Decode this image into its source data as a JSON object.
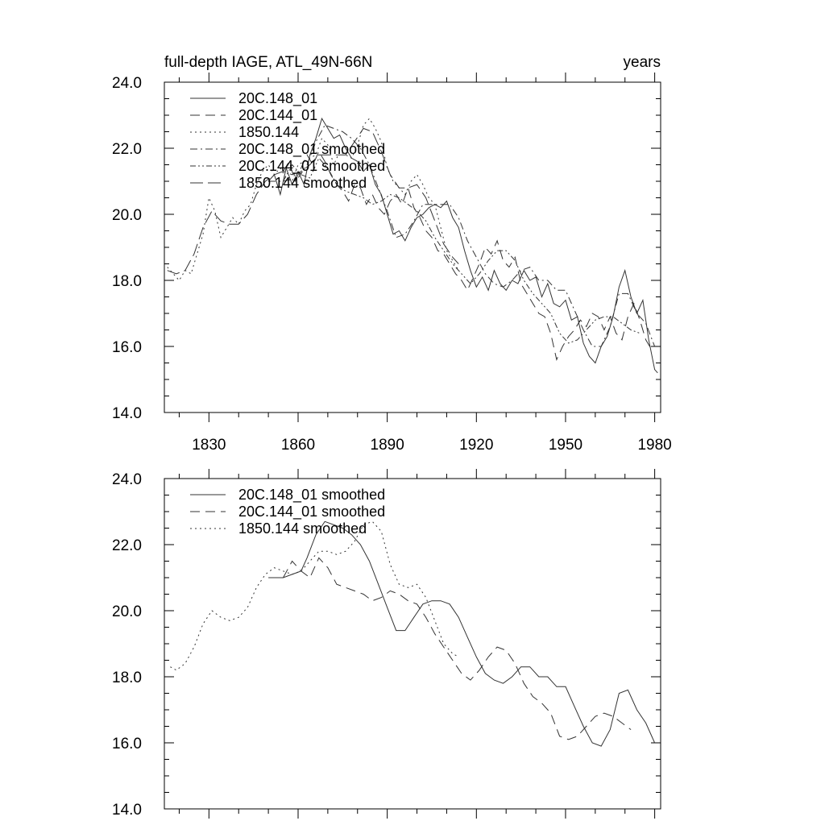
{
  "chart_data": [
    {
      "type": "line",
      "title": "full-depth IAGE, ATL_49N-66N",
      "units": "years",
      "xlim": [
        1815,
        1982
      ],
      "ylim": [
        14.0,
        24.0
      ],
      "xticks": [
        "1830",
        "1860",
        "1890",
        "1920",
        "1950",
        "1980"
      ],
      "yticks": [
        "14.0",
        "16.0",
        "18.0",
        "20.0",
        "22.0",
        "24.0"
      ],
      "legend_position": "top-left",
      "series": [
        {
          "name": "20C.148_01",
          "style": "solid",
          "x": [
            1850,
            1852,
            1854,
            1856,
            1858,
            1860,
            1862,
            1864,
            1866,
            1868,
            1870,
            1872,
            1874,
            1876,
            1878,
            1880,
            1882,
            1884,
            1886,
            1888,
            1890,
            1892,
            1894,
            1896,
            1898,
            1900,
            1902,
            1904,
            1906,
            1908,
            1910,
            1912,
            1914,
            1916,
            1918,
            1920,
            1922,
            1924,
            1926,
            1928,
            1930,
            1932,
            1934,
            1936,
            1938,
            1940,
            1942,
            1944,
            1946,
            1948,
            1950,
            1952,
            1954,
            1956,
            1958,
            1960,
            1962,
            1964,
            1966,
            1968,
            1970,
            1972,
            1974,
            1976,
            1978,
            1980,
            1981
          ],
          "y": [
            21.0,
            21.2,
            20.6,
            21.4,
            20.9,
            21.3,
            20.9,
            21.8,
            22.3,
            22.9,
            22.6,
            22.3,
            22.4,
            22.0,
            21.7,
            21.6,
            21.3,
            21.5,
            20.9,
            20.6,
            20.0,
            19.4,
            19.5,
            19.2,
            19.6,
            19.9,
            20.0,
            20.2,
            20.3,
            20.2,
            20.4,
            19.9,
            19.6,
            18.9,
            18.3,
            17.8,
            18.1,
            17.7,
            18.3,
            17.9,
            17.7,
            18.0,
            17.9,
            18.3,
            18.0,
            18.1,
            17.5,
            17.9,
            17.3,
            17.2,
            17.4,
            16.8,
            16.9,
            16.1,
            15.7,
            15.5,
            16.0,
            16.3,
            16.9,
            17.8,
            18.3,
            17.5,
            17.0,
            17.4,
            16.2,
            15.3,
            15.2
          ]
        },
        {
          "name": "20C.144_01",
          "style": "dashed",
          "x": [
            1855,
            1857,
            1859,
            1861,
            1863,
            1865,
            1867,
            1869,
            1871,
            1873,
            1875,
            1877,
            1879,
            1881,
            1883,
            1885,
            1887,
            1889,
            1891,
            1893,
            1895,
            1897,
            1899,
            1901,
            1903,
            1905,
            1907,
            1909,
            1911,
            1913,
            1915,
            1917,
            1919,
            1921,
            1923,
            1925,
            1927,
            1929,
            1931,
            1933,
            1935,
            1937,
            1939,
            1941,
            1943,
            1945,
            1947,
            1949,
            1951,
            1953,
            1955,
            1957,
            1959,
            1961,
            1963,
            1965,
            1967,
            1969,
            1971,
            1973,
            1975,
            1977,
            1979
          ],
          "y": [
            21.3,
            21.6,
            21.0,
            21.4,
            21.8,
            21.5,
            21.9,
            21.6,
            21.2,
            20.9,
            20.7,
            20.4,
            20.9,
            20.8,
            20.3,
            20.6,
            20.2,
            20.0,
            20.4,
            20.6,
            20.3,
            20.8,
            20.2,
            19.9,
            19.5,
            19.3,
            18.9,
            18.8,
            18.5,
            18.2,
            18.0,
            17.7,
            18.1,
            18.5,
            19.0,
            18.8,
            19.2,
            18.6,
            18.4,
            18.7,
            17.9,
            17.6,
            17.3,
            17.0,
            16.9,
            16.4,
            15.6,
            16.0,
            16.3,
            16.5,
            16.8,
            16.6,
            17.0,
            16.9,
            16.5,
            16.9,
            16.4,
            16.2,
            16.9,
            17.3,
            16.8,
            16.2,
            15.9
          ]
        },
        {
          "name": "1850.144",
          "style": "dotted",
          "x": [
            1816,
            1818,
            1820,
            1822,
            1824,
            1826,
            1828,
            1830,
            1832,
            1834,
            1836,
            1838,
            1840,
            1842,
            1844,
            1846,
            1848,
            1850,
            1852,
            1854,
            1856,
            1858,
            1860,
            1862,
            1864,
            1866,
            1868,
            1870,
            1872,
            1874,
            1876,
            1878,
            1880,
            1882,
            1884,
            1886,
            1888,
            1890,
            1892,
            1894,
            1896,
            1898,
            1900,
            1902,
            1904,
            1906,
            1908,
            1910,
            1912,
            1914
          ],
          "y": [
            18.4,
            18.2,
            18.0,
            18.3,
            18.2,
            18.8,
            19.4,
            20.5,
            20.1,
            19.3,
            19.6,
            19.9,
            19.7,
            20.1,
            20.3,
            20.9,
            21.3,
            21.5,
            21.2,
            21.4,
            21.1,
            21.0,
            21.5,
            21.6,
            21.7,
            21.8,
            22.3,
            22.1,
            21.5,
            21.9,
            21.8,
            21.7,
            22.1,
            22.7,
            22.9,
            22.6,
            22.2,
            21.4,
            21.0,
            20.8,
            20.6,
            21.0,
            21.2,
            20.9,
            20.5,
            20.3,
            19.6,
            18.9,
            18.6,
            18.3
          ]
        },
        {
          "name": "20C.148_01 smoothed",
          "style": "dashdot",
          "x": [
            1850,
            1855,
            1860,
            1863,
            1866,
            1869,
            1872,
            1875,
            1878,
            1881,
            1884,
            1887,
            1890,
            1893,
            1896,
            1899,
            1902,
            1905,
            1908,
            1911,
            1914,
            1917,
            1920,
            1923,
            1926,
            1929,
            1932,
            1935,
            1938,
            1941,
            1944,
            1947,
            1950,
            1953,
            1956,
            1959,
            1962,
            1965,
            1968,
            1971,
            1974,
            1977,
            1980
          ],
          "y": [
            21.0,
            21.0,
            21.1,
            21.5,
            22.2,
            22.7,
            22.6,
            22.5,
            22.3,
            22.0,
            21.5,
            20.8,
            20.1,
            19.3,
            19.4,
            19.8,
            20.3,
            20.3,
            20.3,
            20.3,
            19.9,
            19.2,
            18.7,
            18.2,
            17.9,
            17.8,
            18.0,
            18.3,
            18.4,
            18.0,
            18.0,
            17.7,
            17.7,
            17.1,
            16.5,
            16.0,
            16.0,
            16.6,
            17.6,
            17.6,
            17.0,
            16.7,
            16.0
          ]
        },
        {
          "name": "20C.144_01 smoothed",
          "style": "dashdotdot",
          "x": [
            1855,
            1858,
            1861,
            1864,
            1867,
            1870,
            1873,
            1876,
            1879,
            1882,
            1885,
            1888,
            1891,
            1894,
            1897,
            1900,
            1903,
            1906,
            1909,
            1912,
            1915,
            1918,
            1921,
            1924,
            1927,
            1930,
            1933,
            1936,
            1939,
            1942,
            1945,
            1948,
            1951,
            1954,
            1957,
            1960,
            1963,
            1966,
            1969,
            1972,
            1975
          ],
          "y": [
            21.0,
            21.5,
            21.2,
            21.1,
            21.7,
            21.4,
            20.9,
            20.7,
            20.6,
            20.5,
            20.3,
            20.4,
            20.6,
            20.5,
            20.3,
            20.1,
            19.8,
            19.3,
            18.9,
            18.5,
            18.2,
            17.9,
            18.2,
            18.6,
            18.9,
            18.9,
            18.6,
            18.0,
            17.6,
            17.3,
            17.0,
            16.4,
            16.1,
            16.2,
            16.5,
            16.8,
            16.9,
            16.9,
            16.7,
            16.5,
            16.4
          ]
        },
        {
          "name": "1850.144 smoothed",
          "style": "longdash",
          "x": [
            1816,
            1819,
            1822,
            1825,
            1828,
            1831,
            1834,
            1837,
            1840,
            1843,
            1846,
            1849,
            1852,
            1855,
            1858,
            1861,
            1864,
            1867,
            1870,
            1873,
            1876,
            1879,
            1882,
            1885,
            1888,
            1891,
            1894,
            1897,
            1900,
            1903,
            1906,
            1909,
            1912,
            1914
          ],
          "y": [
            18.3,
            18.2,
            18.3,
            18.8,
            19.6,
            20.1,
            19.8,
            19.7,
            19.7,
            20.0,
            20.6,
            21.0,
            21.2,
            21.3,
            21.2,
            21.3,
            21.5,
            21.8,
            21.8,
            21.8,
            21.8,
            22.2,
            22.6,
            22.5,
            21.9,
            21.2,
            20.8,
            20.8,
            20.9,
            20.5,
            19.8,
            19.1,
            18.7,
            18.5
          ]
        }
      ]
    },
    {
      "type": "line",
      "title": "",
      "xlim": [
        1815,
        1982
      ],
      "ylim": [
        14.0,
        24.0
      ],
      "yticks": [
        "14.0",
        "16.0",
        "18.0",
        "20.0",
        "22.0",
        "24.0"
      ],
      "legend_position": "top-left",
      "series": [
        {
          "name": "20C.148_01 smoothed",
          "style": "solid",
          "x": [
            1850,
            1855,
            1858,
            1861,
            1863,
            1866,
            1869,
            1872,
            1875,
            1878,
            1881,
            1884,
            1887,
            1890,
            1893,
            1896,
            1899,
            1902,
            1905,
            1908,
            1911,
            1914,
            1917,
            1920,
            1923,
            1926,
            1929,
            1932,
            1935,
            1938,
            1941,
            1944,
            1947,
            1950,
            1953,
            1956,
            1959,
            1962,
            1965,
            1968,
            1971,
            1974,
            1977,
            1980
          ],
          "y": [
            21.0,
            21.0,
            21.1,
            21.2,
            21.6,
            22.3,
            22.7,
            22.6,
            22.5,
            22.3,
            22.0,
            21.5,
            20.8,
            20.1,
            19.4,
            19.4,
            19.8,
            20.2,
            20.3,
            20.3,
            20.2,
            19.8,
            19.2,
            18.6,
            18.1,
            17.9,
            17.8,
            18.0,
            18.3,
            18.3,
            18.0,
            18.0,
            17.7,
            17.7,
            17.1,
            16.5,
            16.0,
            15.9,
            16.4,
            17.5,
            17.6,
            17.0,
            16.6,
            16.0
          ]
        },
        {
          "name": "20C.144_01 smoothed",
          "style": "dashed",
          "x": [
            1855,
            1858,
            1861,
            1864,
            1867,
            1870,
            1873,
            1876,
            1879,
            1882,
            1885,
            1888,
            1891,
            1894,
            1897,
            1900,
            1903,
            1906,
            1909,
            1912,
            1915,
            1918,
            1921,
            1924,
            1927,
            1930,
            1933,
            1936,
            1939,
            1942,
            1945,
            1948,
            1951,
            1954,
            1957,
            1960,
            1963,
            1966,
            1969,
            1972
          ],
          "y": [
            21.0,
            21.5,
            21.2,
            21.0,
            21.6,
            21.3,
            20.8,
            20.7,
            20.6,
            20.5,
            20.3,
            20.4,
            20.6,
            20.5,
            20.3,
            20.2,
            19.8,
            19.3,
            18.9,
            18.5,
            18.1,
            17.9,
            18.2,
            18.6,
            18.9,
            18.8,
            18.4,
            17.8,
            17.4,
            17.2,
            16.9,
            16.2,
            16.1,
            16.2,
            16.5,
            16.8,
            16.9,
            16.8,
            16.6,
            16.4
          ]
        },
        {
          "name": "1850.144 smoothed",
          "style": "dotted",
          "x": [
            1817,
            1819,
            1822,
            1825,
            1828,
            1831,
            1834,
            1837,
            1840,
            1843,
            1846,
            1849,
            1852,
            1855,
            1858,
            1861,
            1864,
            1867,
            1870,
            1873,
            1876,
            1879,
            1882,
            1885,
            1888,
            1891,
            1894,
            1897,
            1900,
            1903,
            1906,
            1909,
            1912,
            1914
          ],
          "y": [
            18.3,
            18.2,
            18.4,
            18.9,
            19.6,
            20.0,
            19.8,
            19.7,
            19.8,
            20.1,
            20.7,
            21.1,
            21.3,
            21.2,
            21.1,
            21.2,
            21.5,
            21.8,
            21.8,
            21.7,
            21.8,
            22.1,
            22.6,
            22.7,
            22.4,
            21.4,
            20.8,
            20.7,
            20.8,
            20.4,
            19.7,
            19.0,
            18.7,
            18.6
          ]
        }
      ]
    }
  ]
}
